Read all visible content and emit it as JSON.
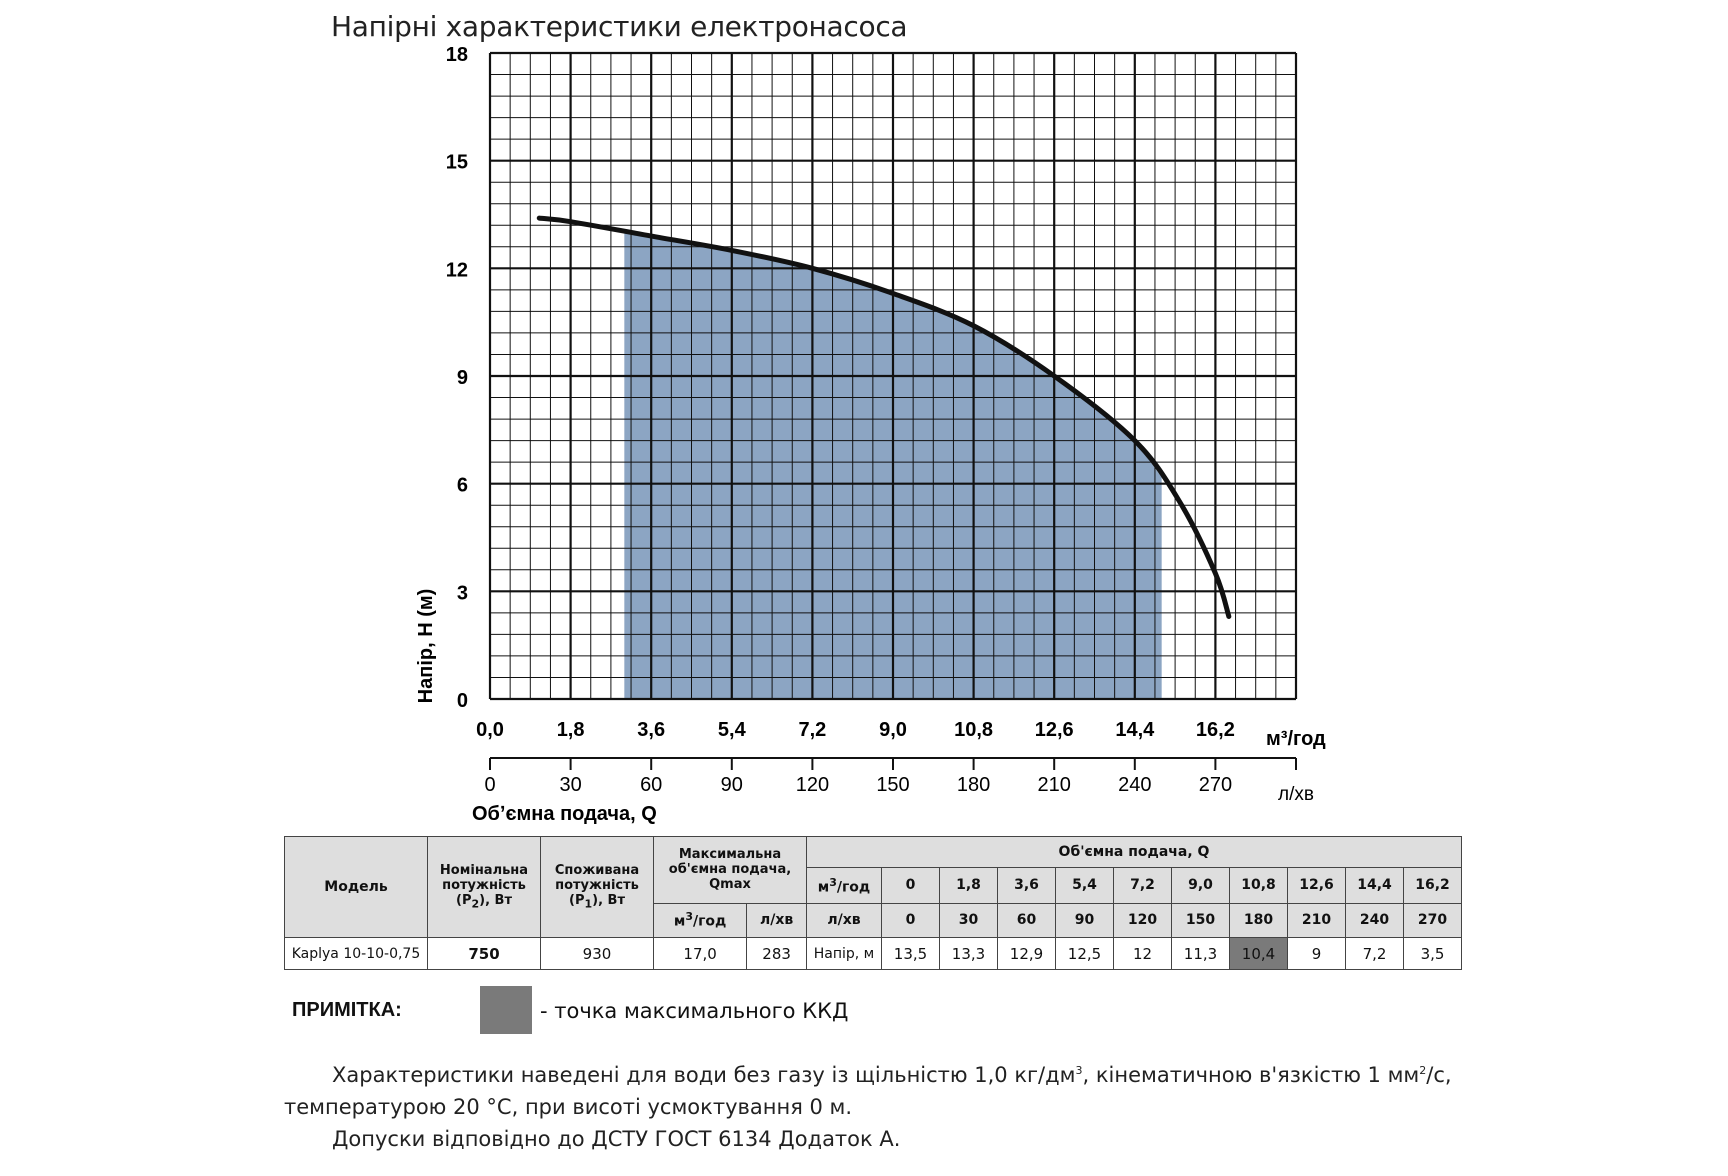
{
  "title": "Напірні характеристики електронасоса",
  "chart_data": {
    "type": "area",
    "ylabel": "Напір, H (м)",
    "xlabel": "Обʼємна подача, Q",
    "ylim": [
      0,
      18
    ],
    "xlim": [
      0,
      18
    ],
    "yticks": [
      "0",
      "3",
      "6",
      "9",
      "12",
      "15",
      "18"
    ],
    "xticks_m3": [
      "0,0",
      "1,8",
      "3,6",
      "5,4",
      "7,2",
      "9,0",
      "10,8",
      "12,6",
      "14,4",
      "16,2"
    ],
    "x_unit_m3": "м³/год",
    "xticks_lmin": [
      "0",
      "30",
      "60",
      "90",
      "120",
      "150",
      "180",
      "210",
      "240",
      "270"
    ],
    "x_unit_lmin": "л/хв",
    "grid": true,
    "curve": {
      "x": [
        1.1,
        1.8,
        3.6,
        5.4,
        7.2,
        9.0,
        10.8,
        12.6,
        14.4,
        15.4,
        16.2,
        16.5
      ],
      "y": [
        13.4,
        13.3,
        12.9,
        12.5,
        12.0,
        11.3,
        10.4,
        9.0,
        7.2,
        5.5,
        3.5,
        2.3
      ]
    },
    "shaded_range": [
      3.0,
      15.0
    ],
    "curve_color": "#111111",
    "fill_color": "#7f9bbd"
  },
  "table": {
    "h_model": "Модель",
    "h_p2": [
      "Номінальна",
      "потужність",
      "(P",
      "2",
      "), Вт"
    ],
    "h_p1": [
      "Споживана",
      "потужність",
      "(P",
      "1",
      "), Вт"
    ],
    "h_qmax": [
      "Максимальна",
      "об'ємна подача,",
      "Qmax"
    ],
    "h_q": "Об'ємна подача, Q",
    "h_m3": "м",
    "h_m3_sup": "3",
    "h_m3_tail": "/год",
    "h_lmin": "л/хв",
    "q_m3": [
      "0",
      "1,8",
      "3,6",
      "5,4",
      "7,2",
      "9,0",
      "10,8",
      "12,6",
      "14,4",
      "16,2"
    ],
    "q_lmin": [
      "0",
      "30",
      "60",
      "90",
      "120",
      "150",
      "180",
      "210",
      "240",
      "270"
    ],
    "row": {
      "model": "Kaplya 10-10-0,75",
      "p2": "750",
      "p1": "930",
      "qmax_m3": "17,0",
      "qmax_lmin": "283",
      "head_label": "Напір, м",
      "head": [
        "13,5",
        "13,3",
        "12,9",
        "12,5",
        "12",
        "11,3",
        "10,4",
        "9",
        "7,2",
        "3,5"
      ],
      "max_eff_index": 6
    }
  },
  "note": {
    "label": "ПРИМІТКА:",
    "text": "- точка максимального ККД"
  },
  "footnote": {
    "line1a": "Характеристики наведені для води без газу із щільністю 1,0 кг/дм",
    "line1sup": "3",
    "line1b": ", кінематичною в'язкістю 1 мм",
    "line1sup2": "2",
    "line1c": "/с, температурою 20 °C, при висоті усмоктування 0 м.",
    "line2": "Допуски відповідно до ДСТУ ГОСТ 6134 Додаток А."
  }
}
